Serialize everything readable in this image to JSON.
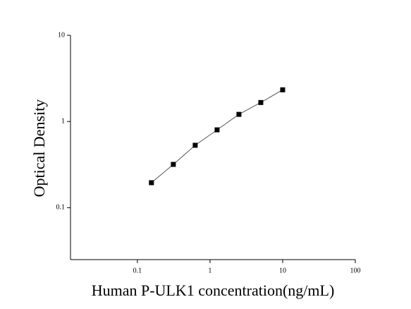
{
  "chart_data": {
    "type": "line",
    "x_label": "Human P-ULK1 concentration(ng/mL)",
    "y_label": "Optical Density",
    "x": [
      0.156,
      0.3125,
      0.625,
      1.25,
      2.5,
      5,
      10
    ],
    "series": [
      {
        "color": "#000000",
        "values": [
          0.195,
          0.318,
          0.53,
          0.8,
          1.21,
          1.66,
          2.33
        ]
      }
    ],
    "xlim": [
      0.012,
      100
    ],
    "ylim": [
      0.025,
      10
    ],
    "xticks": [
      0.1,
      1,
      10,
      100
    ],
    "yticks": [
      0.1,
      1,
      10
    ],
    "xlog": true,
    "ylog": true,
    "grid": false
  }
}
